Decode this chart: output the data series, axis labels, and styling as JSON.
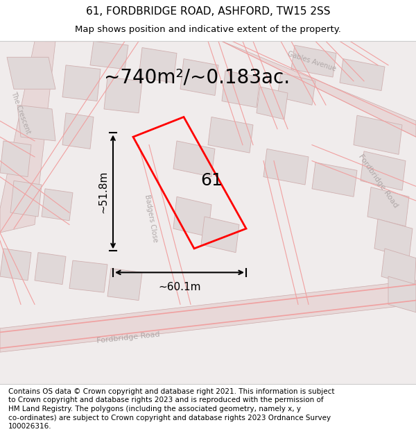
{
  "title": "61, FORDBRIDGE ROAD, ASHFORD, TW15 2SS",
  "subtitle": "Map shows position and indicative extent of the property.",
  "area_text": "~740m²/~0.183ac.",
  "label_61": "61",
  "dim_vertical": "~51.8m",
  "dim_horizontal": "~60.1m",
  "footer_lines": [
    "Contains OS data © Crown copyright and database right 2021. This information is subject",
    "to Crown copyright and database rights 2023 and is reproduced with the permission of",
    "HM Land Registry. The polygons (including the associated geometry, namely x, y",
    "co-ordinates) are subject to Crown copyright and database rights 2023 Ordnance Survey",
    "100026316."
  ],
  "map_bg": "#f0ecec",
  "road_color": "#f0a0a0",
  "building_color": "#e0d8d8",
  "building_outline": "#d0b0b0",
  "polygon_color": "#ff0000",
  "title_fontsize": 11,
  "subtitle_fontsize": 9.5,
  "area_fontsize": 20,
  "dim_fontsize": 11,
  "label_fontsize": 18,
  "footer_fontsize": 7.5,
  "road_label_color": "#b0a8a8",
  "road_label_fontsize": 8
}
